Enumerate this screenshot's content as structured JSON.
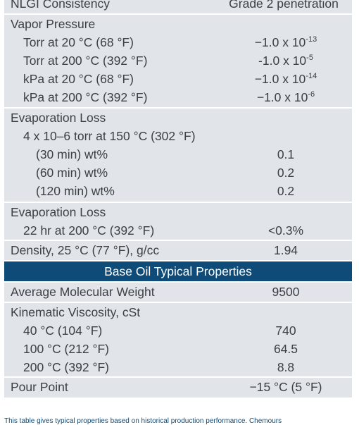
{
  "colors": {
    "row_bg": "#e1e5e9",
    "header_bg": "#0f4b78",
    "text": "#3c4044",
    "header_text": "#ffffff"
  },
  "nlgi": {
    "label": "NLGI Consistency",
    "value": "Grade 2 penetration"
  },
  "vapor": {
    "label": "Vapor Pressure",
    "items": [
      {
        "label": "Torr at 20 °C (68 °F)",
        "base": "−1.0 x 10",
        "exp": "-13"
      },
      {
        "label": "Torr at 200 °C (392 °F)",
        "base": "-1.0 x 10",
        "exp": "-5"
      },
      {
        "label": "kPa at 20 °C (68 °F)",
        "base": "−1.0 x 10",
        "exp": "-14"
      },
      {
        "label": "kPa at 200 °C (392 °F)",
        "base": "−1.0 x 10",
        "exp": "-6"
      }
    ]
  },
  "evap1": {
    "label": "Evaporation Loss",
    "sub": "4 x 10–6 torr at 150 °C (302 °F)",
    "items": [
      {
        "label": "(30 min) wt%",
        "value": "0.1"
      },
      {
        "label": "(60 min) wt%",
        "value": "0.2"
      },
      {
        "label": "(120 min) wt%",
        "value": "0.2"
      }
    ]
  },
  "evap2": {
    "label": "Evaporation Loss",
    "sub": "22 hr at 200 °C (392 °F)",
    "value": "<0.3%"
  },
  "density": {
    "label": "Density, 25 °C (77 °F), g/cc",
    "value": "1.94"
  },
  "base_oil_header": "Base Oil Typical Properties",
  "mol_weight": {
    "label": "Average Molecular Weight",
    "value": "9500"
  },
  "viscosity": {
    "label": "Kinematic Viscosity, cSt",
    "items": [
      {
        "label": "40 °C (104 °F)",
        "value": "740"
      },
      {
        "label": "100 °C (212 °F)",
        "value": "64.5"
      },
      {
        "label": "200 °C (392 °F)",
        "value": "8.8"
      }
    ]
  },
  "pour_point": {
    "label": "Pour Point",
    "value": "−15 °C (5 °F)"
  },
  "footnote": "This table gives typical properties based on historical production performance. Chemours"
}
